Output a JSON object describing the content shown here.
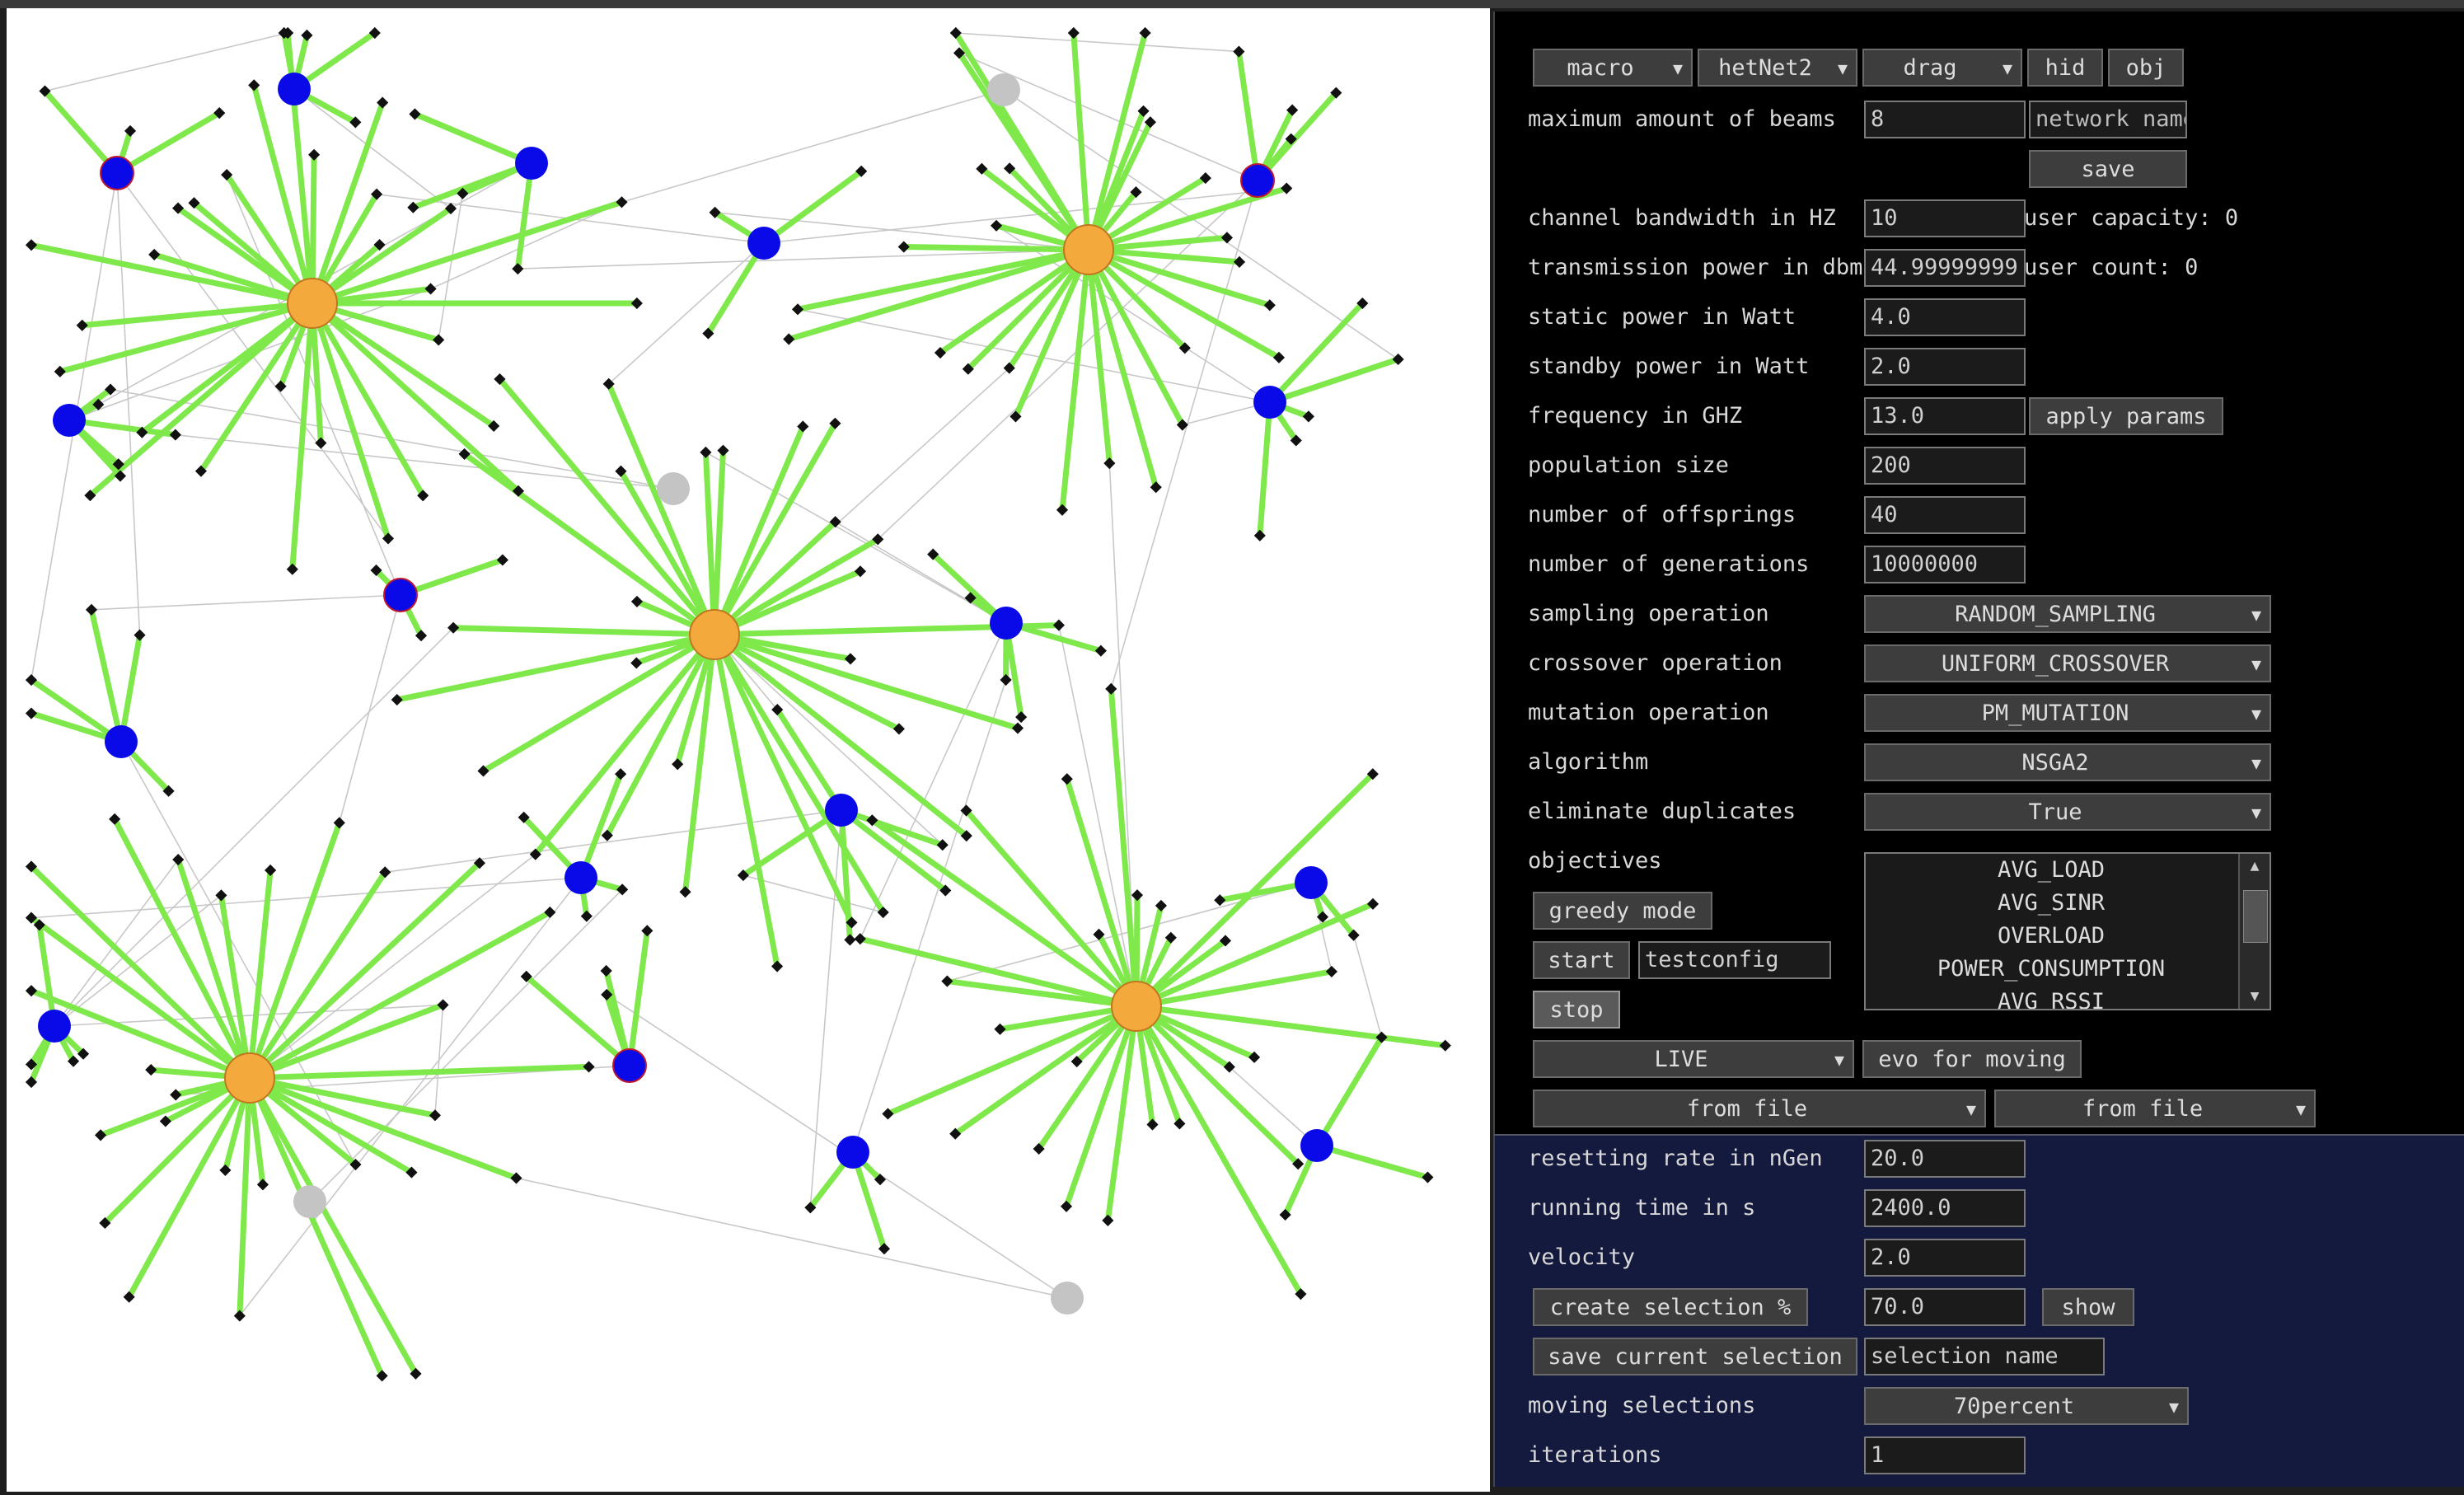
{
  "toolbar": {
    "mode": "macro",
    "network": "hetNet2",
    "tool": "drag",
    "hid_label": "hid",
    "obj_label": "obj"
  },
  "params": {
    "max_beams_label": "maximum amount of beams",
    "max_beams_value": "8",
    "network_name_placeholder": "network name",
    "save_label": "save",
    "bandwidth_label": "channel bandwidth in HZ",
    "bandwidth_value": "10",
    "user_capacity": "user capacity: 0",
    "tx_power_label": "transmission power in dbm",
    "tx_power_value": "44.99999999",
    "user_count": "user count: 0",
    "static_power_label": "static power in Watt",
    "static_power_value": "4.0",
    "standby_power_label": "standby power in Watt",
    "standby_power_value": "2.0",
    "frequency_label": "frequency in GHZ",
    "frequency_value": "13.0",
    "apply_label": "apply params",
    "population_label": "population size",
    "population_value": "200",
    "offsprings_label": "number of offsprings",
    "offsprings_value": "40",
    "generations_label": "number of generations",
    "generations_value": "10000000",
    "sampling_label": "sampling operation",
    "sampling_value": "RANDOM_SAMPLING",
    "crossover_label": "crossover operation",
    "crossover_value": "UNIFORM_CROSSOVER",
    "mutation_label": "mutation operation",
    "mutation_value": "PM_MUTATION",
    "algorithm_label": "algorithm",
    "algorithm_value": "NSGA2",
    "duplicates_label": "eliminate duplicates",
    "duplicates_value": "True",
    "objectives_label": "objectives",
    "objectives": [
      "AVG_LOAD",
      "AVG_SINR",
      "OVERLOAD",
      "POWER_CONSUMPTION",
      "AVG_RSSI"
    ],
    "greedy_label": "greedy mode",
    "start_label": "start",
    "config_value": "testconfig",
    "stop_label": "stop",
    "live_value": "LIVE",
    "evo_label": "evo for moving",
    "from_file_1": "from file",
    "from_file_2": "from file"
  },
  "moving": {
    "resetting_label": "resetting rate in nGen",
    "resetting_value": "20.0",
    "running_label": "running time in s",
    "running_value": "2400.0",
    "velocity_label": "velocity",
    "velocity_value": "2.0",
    "create_sel_label": "create selection %",
    "create_sel_value": "70.0",
    "show_label": "show",
    "save_sel_label": "save current selection",
    "selection_name_placeholder": "selection name",
    "moving_sel_label": "moving selections",
    "moving_sel_value": "70percent",
    "iterations_label": "iterations",
    "iterations_value": "1"
  },
  "colors": {
    "macro_node": "#f4a93c",
    "small_node": "#0a0ae8",
    "inactive_node": "#c4c4c4",
    "link_active": "#7fe84a",
    "link_idle": "#c8c8c8",
    "user": "#111111"
  }
}
